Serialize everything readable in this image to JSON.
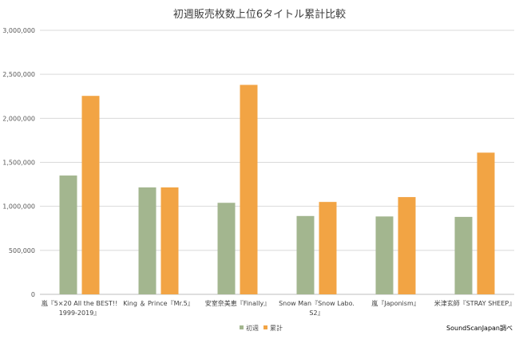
{
  "chart_data": {
    "type": "bar",
    "title": "初週販売枚数上位6タイトル累計比較",
    "categories": [
      [
        "嵐『5×20 All the BEST!!",
        "1999-2019』"
      ],
      [
        "King ＆ Prince『Mr.5』"
      ],
      [
        "安室奈美恵『Finally』"
      ],
      [
        "Snow Man『Snow Labo.",
        "S2』"
      ],
      [
        "嵐『Japonism』"
      ],
      [
        "米津玄師『STRAY SHEEP』"
      ]
    ],
    "series": [
      {
        "name": "初週",
        "color": "#a3b68f",
        "values": [
          1350000,
          1215000,
          1040000,
          890000,
          885000,
          880000
        ]
      },
      {
        "name": "累計",
        "color": "#f2a444",
        "values": [
          2255000,
          1215000,
          2380000,
          1050000,
          1105000,
          1610000
        ]
      }
    ],
    "ylim": [
      0,
      3000000
    ],
    "yticks": [
      0,
      500000,
      1000000,
      1500000,
      2000000,
      2500000,
      3000000
    ],
    "ytick_labels": [
      "0",
      "500,000",
      "1,000,000",
      "1,500,000",
      "2,000,000",
      "2,500,000",
      "3,000,000"
    ],
    "grid": true,
    "legend_position": "bottom",
    "xlabel": "",
    "ylabel": "",
    "source_note": "SoundScanJapan調べ"
  }
}
